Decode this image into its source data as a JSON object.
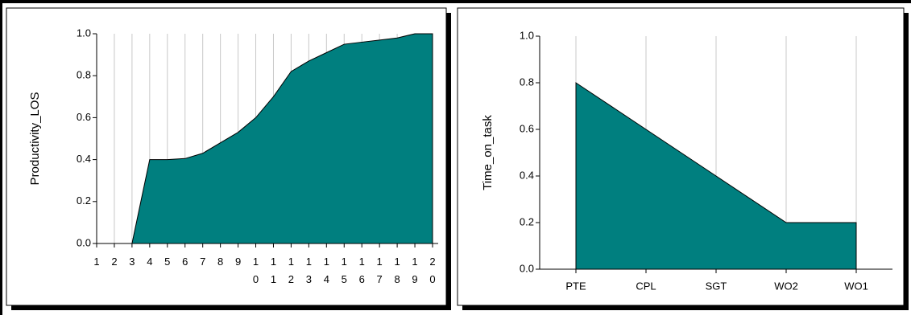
{
  "chart_data": [
    {
      "type": "area",
      "y_label": "Productivity_LOS",
      "categories": [
        "1",
        "2",
        "3",
        "4",
        "5",
        "6",
        "7",
        "8",
        "9",
        "10",
        "11",
        "12",
        "13",
        "14",
        "15",
        "16",
        "17",
        "18",
        "19",
        "20"
      ],
      "values": [
        0,
        0,
        0,
        0.4,
        0.4,
        0.405,
        0.43,
        0.48,
        0.53,
        0.6,
        0.7,
        0.82,
        0.87,
        0.91,
        0.95,
        0.96,
        0.97,
        0.98,
        1.0,
        1.0
      ],
      "color": "#007f7f",
      "ylim": [
        0,
        1
      ],
      "yticks": [
        {
          "value": 0,
          "label": "0.0"
        },
        {
          "value": 0.2,
          "label": "0.2"
        },
        {
          "value": 0.4,
          "label": "0.4"
        },
        {
          "value": 0.6,
          "label": "0.6"
        },
        {
          "value": 0.8,
          "label": "0.8"
        },
        {
          "value": 1,
          "label": "1.0"
        }
      ],
      "grid": true
    },
    {
      "type": "area",
      "y_label": "Time_on_task",
      "categories": [
        "PTE",
        "CPL",
        "SGT",
        "WO2",
        "WO1"
      ],
      "values": [
        0.8,
        0.6,
        0.4,
        0.2,
        0.2
      ],
      "color": "#007f7f",
      "ylim": [
        0,
        1
      ],
      "yticks": [
        {
          "value": 0,
          "label": "0.0"
        },
        {
          "value": 0.2,
          "label": "0.2"
        },
        {
          "value": 0.4,
          "label": "0.4"
        },
        {
          "value": 0.6,
          "label": "0.6"
        },
        {
          "value": 0.8,
          "label": "0.8"
        },
        {
          "value": 1,
          "label": "1.0"
        }
      ],
      "grid": true
    }
  ]
}
